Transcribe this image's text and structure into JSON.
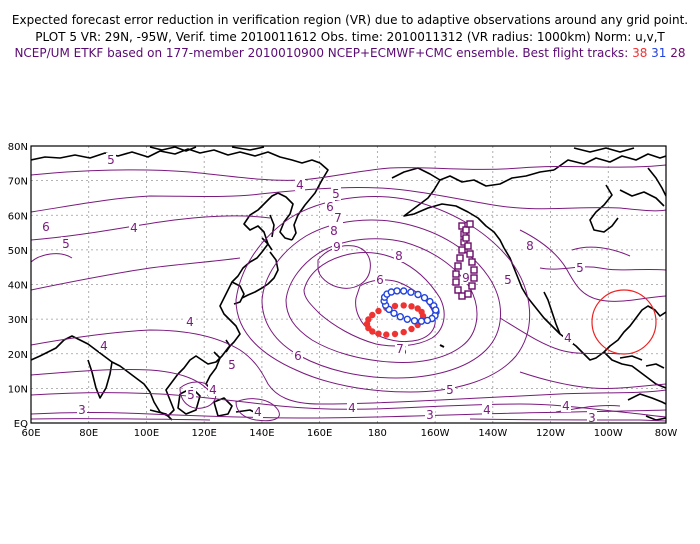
{
  "header": {
    "line1": "Expected forecast error reduction in verification region (VR) due to adaptive observations around any grid point.",
    "line2": "PLOT 5 VR: 29N, -95W, Verif. time 2010011612 Obs. time: 2010011312 (VR radius: 1000km) Norm: u,v,T",
    "line3_prefix": "NCEP/UM ETKF based on 177-member 2010010900 NCEP+ECMWF+CMC ensemble. Best flight tracks:",
    "track_red": "38",
    "track_blue": "31",
    "track_purple": "28"
  },
  "colors": {
    "contour": "#7a1a7e",
    "coast": "#000000",
    "track_red": "#ee3333",
    "track_blue": "#2244dd",
    "track_purple": "#6a0a6a",
    "vr_circle": "#ee2222"
  },
  "map": {
    "lat_labels": [
      "80N",
      "70N",
      "60N",
      "50N",
      "40N",
      "30N",
      "20N",
      "10N",
      "EQ"
    ],
    "lon_labels": [
      "60E",
      "80E",
      "100E",
      "120E",
      "140E",
      "160E",
      "180",
      "160W",
      "140W",
      "120W",
      "100W",
      "80W"
    ],
    "lat_range": [
      0,
      80
    ],
    "lon_range": [
      60,
      280
    ],
    "contour_labels": [
      "5",
      "4",
      "6",
      "5",
      "4",
      "4",
      "4",
      "4",
      "5",
      "6",
      "3",
      "6",
      "8",
      "9",
      "5",
      "7",
      "8",
      "9",
      "8",
      "5",
      "6",
      "7",
      "5",
      "4",
      "5",
      "4",
      "4",
      "3",
      "4",
      "4",
      "3",
      "5",
      "6"
    ],
    "verification_region": {
      "lat": 29,
      "lon": -95,
      "radius_km": 1000
    }
  }
}
